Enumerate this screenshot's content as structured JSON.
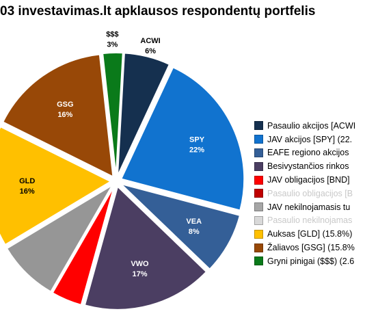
{
  "title": "03  investavimas.lt apklausos respondentų portfelis",
  "chart_data": {
    "type": "pie",
    "title": "03  investavimas.lt apklausos respondentų portfelis",
    "slices": [
      {
        "key": "cash",
        "label": "$$$",
        "pct_label": "3%",
        "value": 2.6,
        "color": "#0a7a1a",
        "label_color": "#000000"
      },
      {
        "key": "acwi",
        "label": "ACWI",
        "pct_label": "6%",
        "value": 6.0,
        "color": "#15304f",
        "label_color": "#000000"
      },
      {
        "key": "spy",
        "label": "SPY",
        "pct_label": "22%",
        "value": 22.0,
        "color": "#1173cf",
        "label_color": "#ffffff"
      },
      {
        "key": "vea",
        "label": "VEA",
        "pct_label": "8%",
        "value": 8.0,
        "color": "#345f97",
        "label_color": "#ffffff"
      },
      {
        "key": "vwo",
        "label": "VWO",
        "pct_label": "17%",
        "value": 17.0,
        "color": "#4b3e62",
        "label_color": "#ffffff"
      },
      {
        "key": "bnd",
        "label": "",
        "pct_label": "",
        "value": 4.0,
        "color": "#ff0000",
        "label_color": "#ffffff"
      },
      {
        "key": "vnq",
        "label": "",
        "pct_label": "",
        "value": 8.0,
        "color": "#969696",
        "label_color": "#ffffff"
      },
      {
        "key": "gld",
        "label": "GLD",
        "pct_label": "16%",
        "value": 15.8,
        "color": "#ffc000",
        "label_color": "#000000"
      },
      {
        "key": "gsg",
        "label": "GSG",
        "pct_label": "16%",
        "value": 15.8,
        "color": "#984807",
        "label_color": "#ffffff"
      }
    ],
    "legend": {
      "placement": "right",
      "items": [
        {
          "text": "Pasaulio akcijos [ACWI",
          "color": "#15304f",
          "muted": false
        },
        {
          "text": "JAV akcijos [SPY] (22.",
          "color": "#1173cf",
          "muted": false
        },
        {
          "text": "EAFE regiono akcijos",
          "color": "#345f97",
          "muted": false
        },
        {
          "text": "Besivystančios rinkos",
          "color": "#4b3e62",
          "muted": false
        },
        {
          "text": "JAV obligacijos [BND]",
          "color": "#ff0000",
          "muted": false
        },
        {
          "text": "Pasaulio obligacijos [B",
          "color": "#c00000",
          "muted": true
        },
        {
          "text": "JAV nekilnojamasis tu",
          "color": "#a6a6a6",
          "muted": false
        },
        {
          "text": "Pasaulio nekilnojamas",
          "color": "#d9d9d9",
          "muted": true
        },
        {
          "text": "Auksas [GLD] (15.8%)",
          "color": "#ffc000",
          "muted": false
        },
        {
          "text": "Žaliavos [GSG] (15.8%",
          "color": "#984807",
          "muted": false
        },
        {
          "text": "Gryni pinigai ($$$) (2.6",
          "color": "#0a7a1a",
          "muted": false
        }
      ]
    }
  }
}
